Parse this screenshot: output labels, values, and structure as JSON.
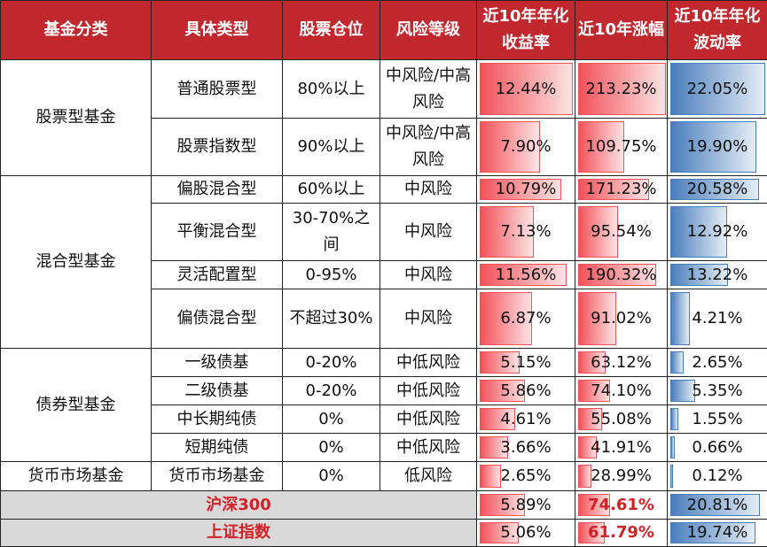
{
  "header": [
    "基金分类",
    "具体类型",
    "股票仓位",
    "风险等级",
    "近10年年化收益率",
    "近10年涨幅",
    "近10年年化波动率"
  ],
  "groups": [
    {
      "name": "股票型基金",
      "rows": [
        {
          "type": "普通股票型",
          "position": "80%以上",
          "risk": "中风险/中高风险",
          "return": "12.44%",
          "gain": "213.23%",
          "volatility": "22.05%"
        },
        {
          "type": "股票指数型",
          "position": "90%以上",
          "risk": "中风险/中高风险",
          "return": "7.90%",
          "gain": "109.75%",
          "volatility": "19.90%"
        }
      ]
    },
    {
      "name": "混合型基金",
      "rows": [
        {
          "type": "偏股混合型",
          "position": "60%以上",
          "risk": "中风险",
          "return": "10.79%",
          "gain": "171.23%",
          "volatility": "20.58%"
        },
        {
          "type": "平衡混合型",
          "position": "30-70%之间",
          "risk": "中风险",
          "return": "7.13%",
          "gain": "95.54%",
          "volatility": "12.92%"
        },
        {
          "type": "灵活配置型",
          "position": "0-95%",
          "risk": "中风险",
          "return": "11.56%",
          "gain": "190.32%",
          "volatility": "13.22%"
        },
        {
          "type": "偏债混合型",
          "position": "不超过30%",
          "risk": "中风险",
          "return": "6.87%",
          "gain": "91.02%",
          "volatility": "4.21%"
        }
      ]
    },
    {
      "name": "债券型基金",
      "rows": [
        {
          "type": "一级债基",
          "position": "0-20%",
          "risk": "中低风险",
          "return": "5.15%",
          "gain": "63.12%",
          "volatility": "2.65%"
        },
        {
          "type": "二级债基",
          "position": "0-20%",
          "risk": "中低风险",
          "return": "5.86%",
          "gain": "74.10%",
          "volatility": "5.35%"
        },
        {
          "type": "中长期纯债",
          "position": "0%",
          "risk": "中低风险",
          "return": "4.61%",
          "gain": "55.08%",
          "volatility": "1.55%"
        },
        {
          "type": "短期纯债",
          "position": "0%",
          "risk": "中低风险",
          "return": "3.66%",
          "gain": "41.91%",
          "volatility": "0.66%"
        }
      ]
    },
    {
      "name": "货币市场基金",
      "rows": [
        {
          "type": "货币市场基金",
          "position": "0%",
          "risk": "低风险",
          "return": "2.65%",
          "gain": "28.99%",
          "volatility": "0.12%"
        }
      ]
    }
  ],
  "indices": [
    {
      "name": "沪深300",
      "return": "5.89%",
      "gain": "74.61%",
      "volatility": "20.81%"
    },
    {
      "name": "上证指数",
      "return": "5.06%",
      "gain": "61.79%",
      "volatility": "19.74%"
    }
  ]
}
